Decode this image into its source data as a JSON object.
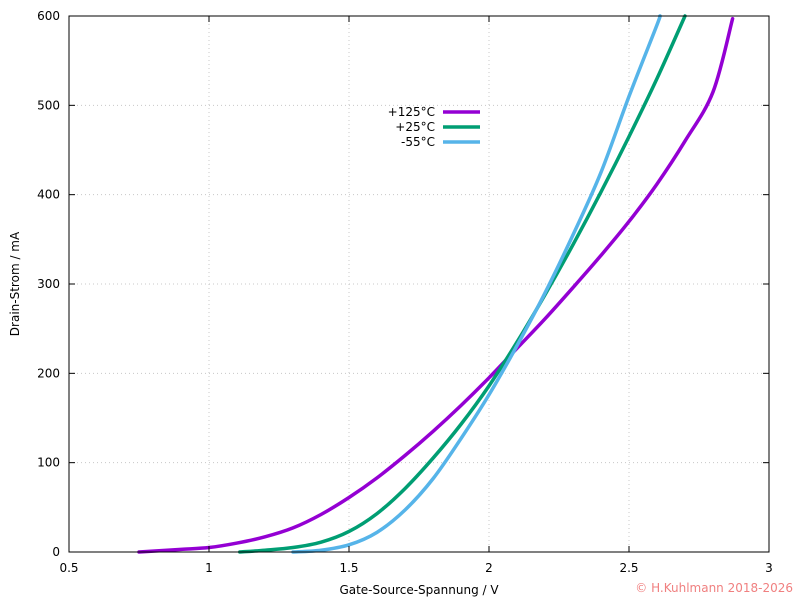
{
  "chart_data": {
    "type": "line",
    "xlabel": "Gate-Source-Spannung / V",
    "ylabel": "Drain-Strom / mA",
    "xlim": [
      0.5,
      3
    ],
    "ylim": [
      0,
      600
    ],
    "xticks": [
      0.5,
      1,
      1.5,
      2,
      2.5,
      3
    ],
    "xtick_labels": [
      "0.5",
      "1",
      "1.5",
      "2",
      "2.5",
      "3"
    ],
    "yticks": [
      0,
      100,
      200,
      300,
      400,
      500,
      600
    ],
    "ytick_labels": [
      "0",
      "100",
      "200",
      "300",
      "400",
      "500",
      "600"
    ],
    "grid": true,
    "legend_position": "top-center",
    "series": [
      {
        "name": "+125°C",
        "color": "#9400d3",
        "x": [
          0.75,
          0.8,
          0.9,
          1.0,
          1.1,
          1.2,
          1.3,
          1.4,
          1.5,
          1.6,
          1.7,
          1.8,
          1.9,
          2.0,
          2.1,
          2.2,
          2.3,
          2.4,
          2.5,
          2.6,
          2.7,
          2.8,
          2.87
        ],
        "y": [
          0,
          1,
          3,
          5,
          10,
          17,
          27,
          42,
          61,
          83,
          108,
          135,
          164,
          195,
          228,
          261,
          296,
          332,
          370,
          412,
          460,
          515,
          597
        ]
      },
      {
        "name": "+25°C",
        "color": "#009e73",
        "x": [
          1.11,
          1.2,
          1.3,
          1.4,
          1.5,
          1.6,
          1.7,
          1.8,
          1.9,
          2.0,
          2.1,
          2.2,
          2.3,
          2.4,
          2.5,
          2.6,
          2.7
        ],
        "y": [
          0,
          2,
          5,
          11,
          23,
          43,
          71,
          105,
          143,
          186,
          235,
          288,
          344,
          403,
          465,
          530,
          600
        ]
      },
      {
        "name": "-55°C",
        "color": "#56b4e9",
        "x": [
          1.3,
          1.4,
          1.5,
          1.6,
          1.7,
          1.8,
          1.9,
          2.0,
          2.1,
          2.2,
          2.3,
          2.4,
          2.5,
          2.6,
          2.61
        ],
        "y": [
          0,
          2,
          8,
          22,
          47,
          82,
          127,
          176,
          231,
          290,
          355,
          425,
          510,
          590,
          600
        ]
      }
    ]
  },
  "copyright": {
    "text": "© H.Kuhlmann 2018-2026",
    "color": "#f08080"
  }
}
